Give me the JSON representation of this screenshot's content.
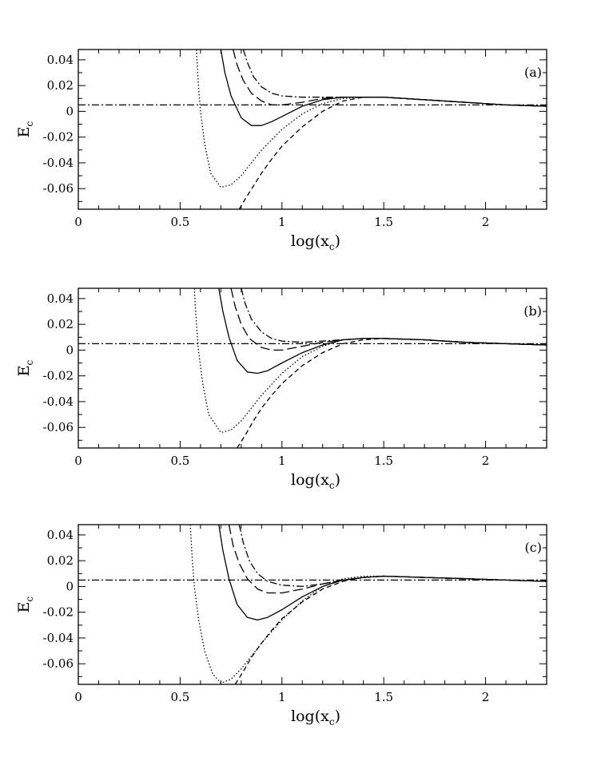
{
  "figure": {
    "description_label": "Three-panel line plot"
  },
  "chart_data": [
    {
      "type": "line",
      "panel_label": "(a)",
      "xlabel_main": "log(x",
      "xlabel_sub": "c",
      "xlabel_close": ")",
      "ylabel_main": "E",
      "ylabel_sub": "c",
      "xlim": [
        0,
        2.3
      ],
      "ylim": [
        -0.076,
        0.048
      ],
      "xticks": [
        0,
        0.5,
        1,
        1.5,
        2
      ],
      "xtick_labels": [
        "0",
        "0.5",
        "1",
        "1.5",
        "2"
      ],
      "yticks": [
        -0.06,
        -0.04,
        -0.02,
        0,
        0.02,
        0.04
      ],
      "ytick_labels": [
        "-0.06",
        "-0.04",
        "-0.02",
        "0",
        "0.02",
        "0.04"
      ],
      "series": [
        {
          "name": "horizontal",
          "dash": "dashdot",
          "x": [
            0,
            2.3
          ],
          "y": [
            0.005,
            0.005
          ]
        },
        {
          "name": "dotted",
          "dash": "dotted",
          "x": [
            0.58,
            0.59,
            0.6,
            0.62,
            0.65,
            0.7,
            0.75,
            0.8,
            0.85,
            0.9,
            1.0,
            1.1,
            1.2,
            1.3,
            1.4,
            1.5,
            1.7,
            1.9,
            2.1,
            2.3
          ],
          "y": [
            0.048,
            0.02,
            0.0,
            -0.025,
            -0.048,
            -0.059,
            -0.057,
            -0.05,
            -0.04,
            -0.03,
            -0.014,
            -0.002,
            0.006,
            0.01,
            0.011,
            0.011,
            0.009,
            0.007,
            0.005,
            0.004
          ]
        },
        {
          "name": "dashed",
          "dash": "dashed",
          "x": [
            0.79,
            0.82,
            0.86,
            0.9,
            0.95,
            1.0,
            1.1,
            1.2,
            1.3,
            1.4,
            1.5,
            1.7,
            1.9,
            2.1,
            2.3
          ],
          "y": [
            -0.076,
            -0.068,
            -0.058,
            -0.048,
            -0.037,
            -0.027,
            -0.012,
            0.0,
            0.008,
            0.011,
            0.011,
            0.009,
            0.007,
            0.005,
            0.004
          ]
        },
        {
          "name": "solid",
          "dash": "solid",
          "x": [
            0.7,
            0.72,
            0.75,
            0.8,
            0.85,
            0.9,
            0.95,
            1.0,
            1.1,
            1.2,
            1.3,
            1.4,
            1.5,
            1.7,
            1.9,
            2.1,
            2.3
          ],
          "y": [
            0.048,
            0.03,
            0.012,
            -0.005,
            -0.011,
            -0.011,
            -0.008,
            -0.004,
            0.004,
            0.009,
            0.011,
            0.011,
            0.011,
            0.009,
            0.007,
            0.005,
            0.004
          ]
        },
        {
          "name": "long-dash",
          "dash": "longdash",
          "x": [
            0.76,
            0.78,
            0.81,
            0.85,
            0.9,
            0.95,
            1.0,
            1.1,
            1.2,
            1.3,
            1.4,
            1.5,
            1.7,
            1.9,
            2.1,
            2.3
          ],
          "y": [
            0.048,
            0.036,
            0.024,
            0.014,
            0.008,
            0.005,
            0.005,
            0.007,
            0.01,
            0.011,
            0.011,
            0.011,
            0.009,
            0.007,
            0.005,
            0.004
          ]
        },
        {
          "name": "dash-dot",
          "dash": "dashdot",
          "x": [
            0.81,
            0.83,
            0.86,
            0.9,
            0.95,
            1.0,
            1.1,
            1.2,
            1.3,
            1.4,
            1.5,
            1.7,
            1.9,
            2.1,
            2.3
          ],
          "y": [
            0.048,
            0.038,
            0.027,
            0.019,
            0.014,
            0.012,
            0.011,
            0.011,
            0.011,
            0.011,
            0.011,
            0.009,
            0.007,
            0.005,
            0.004
          ]
        }
      ]
    },
    {
      "type": "line",
      "panel_label": "(b)",
      "xlabel_main": "log(x",
      "xlabel_sub": "c",
      "xlabel_close": ")",
      "ylabel_main": "E",
      "ylabel_sub": "c",
      "xlim": [
        0,
        2.3
      ],
      "ylim": [
        -0.076,
        0.048
      ],
      "xticks": [
        0,
        0.5,
        1,
        1.5,
        2
      ],
      "xtick_labels": [
        "0",
        "0.5",
        "1",
        "1.5",
        "2"
      ],
      "yticks": [
        -0.06,
        -0.04,
        -0.02,
        0,
        0.02,
        0.04
      ],
      "ytick_labels": [
        "-0.06",
        "-0.04",
        "-0.02",
        "0",
        "0.02",
        "0.04"
      ],
      "series": [
        {
          "name": "horizontal",
          "dash": "dashdot",
          "x": [
            0,
            2.3
          ],
          "y": [
            0.005,
            0.005
          ]
        },
        {
          "name": "dotted",
          "dash": "dotted",
          "x": [
            0.57,
            0.58,
            0.59,
            0.61,
            0.64,
            0.7,
            0.75,
            0.8,
            0.85,
            0.9,
            1.0,
            1.1,
            1.2,
            1.3,
            1.4,
            1.5,
            1.7,
            1.9,
            2.1,
            2.3
          ],
          "y": [
            0.048,
            0.02,
            0.0,
            -0.025,
            -0.05,
            -0.064,
            -0.062,
            -0.055,
            -0.045,
            -0.035,
            -0.018,
            -0.005,
            0.003,
            0.008,
            0.009,
            0.009,
            0.008,
            0.006,
            0.005,
            0.004
          ]
        },
        {
          "name": "dashed",
          "dash": "dashed",
          "x": [
            0.78,
            0.82,
            0.86,
            0.9,
            0.95,
            1.0,
            1.1,
            1.2,
            1.3,
            1.4,
            1.5,
            1.7,
            1.9,
            2.1,
            2.3
          ],
          "y": [
            -0.076,
            -0.066,
            -0.055,
            -0.045,
            -0.035,
            -0.026,
            -0.012,
            -0.002,
            0.005,
            0.008,
            0.009,
            0.008,
            0.006,
            0.005,
            0.004
          ]
        },
        {
          "name": "solid",
          "dash": "solid",
          "x": [
            0.69,
            0.71,
            0.74,
            0.78,
            0.83,
            0.88,
            0.93,
            1.0,
            1.1,
            1.2,
            1.3,
            1.4,
            1.5,
            1.7,
            1.9,
            2.1,
            2.3
          ],
          "y": [
            0.048,
            0.03,
            0.01,
            -0.008,
            -0.017,
            -0.018,
            -0.016,
            -0.01,
            -0.002,
            0.004,
            0.008,
            0.009,
            0.009,
            0.008,
            0.006,
            0.005,
            0.004
          ]
        },
        {
          "name": "long-dash",
          "dash": "longdash",
          "x": [
            0.75,
            0.77,
            0.8,
            0.84,
            0.9,
            0.95,
            1.0,
            1.1,
            1.2,
            1.3,
            1.4,
            1.5,
            1.7,
            1.9,
            2.1,
            2.3
          ],
          "y": [
            0.048,
            0.034,
            0.02,
            0.009,
            0.002,
            0.0,
            0.0,
            0.003,
            0.006,
            0.008,
            0.009,
            0.009,
            0.008,
            0.006,
            0.005,
            0.004
          ]
        },
        {
          "name": "dash-dot",
          "dash": "dashdot",
          "x": [
            0.8,
            0.82,
            0.85,
            0.9,
            0.95,
            1.0,
            1.1,
            1.2,
            1.3,
            1.4,
            1.5,
            1.7,
            1.9,
            2.1,
            2.3
          ],
          "y": [
            0.048,
            0.036,
            0.024,
            0.014,
            0.009,
            0.007,
            0.006,
            0.007,
            0.008,
            0.009,
            0.009,
            0.008,
            0.006,
            0.005,
            0.004
          ]
        }
      ]
    },
    {
      "type": "line",
      "panel_label": "(c)",
      "xlabel_main": "log(x",
      "xlabel_sub": "c",
      "xlabel_close": ")",
      "ylabel_main": "E",
      "ylabel_sub": "c",
      "xlim": [
        0,
        2.3
      ],
      "ylim": [
        -0.076,
        0.048
      ],
      "xticks": [
        0,
        0.5,
        1,
        1.5,
        2
      ],
      "xtick_labels": [
        "0",
        "0.5",
        "1",
        "1.5",
        "2"
      ],
      "yticks": [
        -0.06,
        -0.04,
        -0.02,
        0,
        0.02,
        0.04
      ],
      "ytick_labels": [
        "-0.06",
        "-0.04",
        "-0.02",
        "0",
        "0.02",
        "0.04"
      ],
      "series": [
        {
          "name": "horizontal",
          "dash": "dashdot",
          "x": [
            0,
            2.3
          ],
          "y": [
            0.005,
            0.005
          ]
        },
        {
          "name": "dotted",
          "dash": "dotted",
          "x": [
            0.55,
            0.56,
            0.57,
            0.59,
            0.62,
            0.66,
            0.7,
            0.75,
            0.8,
            0.85,
            0.9,
            1.0,
            1.1,
            1.2,
            1.3,
            1.4,
            1.5,
            1.7,
            1.9,
            2.1,
            2.3
          ],
          "y": [
            0.048,
            0.02,
            0.0,
            -0.025,
            -0.05,
            -0.068,
            -0.075,
            -0.072,
            -0.064,
            -0.054,
            -0.044,
            -0.026,
            -0.011,
            0.0,
            0.006,
            0.008,
            0.008,
            0.007,
            0.006,
            0.005,
            0.004
          ]
        },
        {
          "name": "dashed",
          "dash": "dashed",
          "x": [
            0.77,
            0.81,
            0.85,
            0.9,
            0.95,
            1.0,
            1.1,
            1.2,
            1.3,
            1.4,
            1.5,
            1.7,
            1.9,
            2.1,
            2.3
          ],
          "y": [
            -0.076,
            -0.066,
            -0.055,
            -0.044,
            -0.034,
            -0.025,
            -0.012,
            -0.002,
            0.004,
            0.007,
            0.008,
            0.007,
            0.006,
            0.005,
            0.004
          ]
        },
        {
          "name": "solid",
          "dash": "solid",
          "x": [
            0.69,
            0.71,
            0.74,
            0.78,
            0.83,
            0.88,
            0.93,
            1.0,
            1.1,
            1.2,
            1.3,
            1.4,
            1.5,
            1.7,
            1.9,
            2.1,
            2.3
          ],
          "y": [
            0.048,
            0.028,
            0.006,
            -0.014,
            -0.024,
            -0.026,
            -0.024,
            -0.018,
            -0.008,
            0.0,
            0.005,
            0.007,
            0.008,
            0.007,
            0.006,
            0.005,
            0.004
          ]
        },
        {
          "name": "long-dash",
          "dash": "longdash",
          "x": [
            0.74,
            0.76,
            0.79,
            0.83,
            0.88,
            0.93,
            1.0,
            1.1,
            1.2,
            1.3,
            1.4,
            1.5,
            1.7,
            1.9,
            2.1,
            2.3
          ],
          "y": [
            0.048,
            0.032,
            0.018,
            0.006,
            -0.002,
            -0.005,
            -0.005,
            -0.002,
            0.002,
            0.005,
            0.007,
            0.008,
            0.007,
            0.006,
            0.005,
            0.004
          ]
        },
        {
          "name": "dash-dot",
          "dash": "dashdot",
          "x": [
            0.79,
            0.81,
            0.84,
            0.88,
            0.93,
            1.0,
            1.1,
            1.2,
            1.3,
            1.4,
            1.5,
            1.7,
            1.9,
            2.1,
            2.3
          ],
          "y": [
            0.048,
            0.034,
            0.02,
            0.01,
            0.004,
            0.001,
            0.0,
            0.002,
            0.005,
            0.007,
            0.008,
            0.007,
            0.006,
            0.005,
            0.004
          ]
        }
      ]
    }
  ]
}
